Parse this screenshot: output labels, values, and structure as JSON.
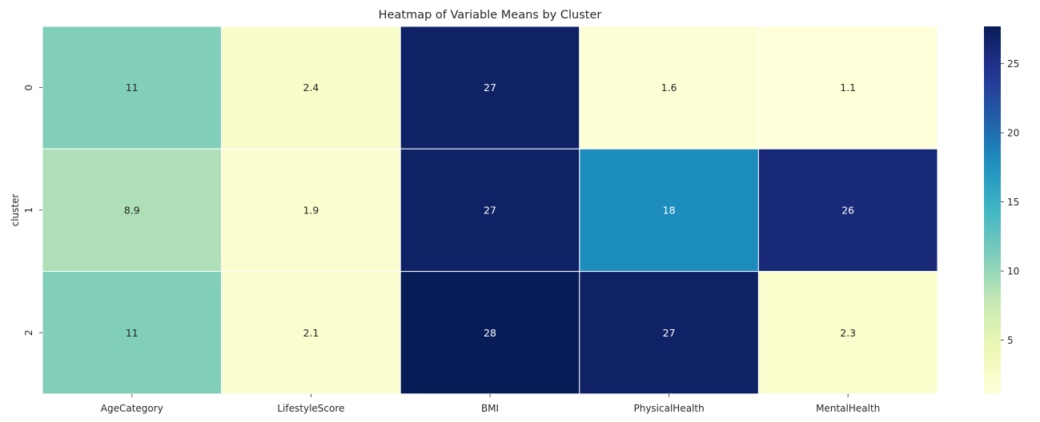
{
  "chart_data": {
    "type": "heatmap",
    "title": "Heatmap of Variable Means by Cluster",
    "xlabel": "",
    "ylabel": "cluster",
    "x_categories": [
      "AgeCategory",
      "LifestyleScore",
      "BMI",
      "PhysicalHealth",
      "MentalHealth"
    ],
    "y_categories": [
      "0",
      "1",
      "2"
    ],
    "values": [
      [
        11,
        2.4,
        27,
        1.6,
        1.1
      ],
      [
        8.9,
        1.9,
        27,
        18,
        26
      ],
      [
        11,
        2.1,
        28,
        27,
        2.3
      ]
    ],
    "annotations": [
      [
        "11",
        "2.4",
        "27",
        "1.6",
        "1.1"
      ],
      [
        "8.9",
        "1.9",
        "27",
        "18",
        "26"
      ],
      [
        "11",
        "2.1",
        "28",
        "27",
        "2.3"
      ]
    ],
    "colormap": "YlGnBu",
    "vmin": 1.1,
    "vmax": 27.7,
    "colorbar": {
      "ticks": [
        5,
        10,
        15,
        20,
        25
      ],
      "tick_labels": [
        "5",
        "10",
        "15",
        "20",
        "25"
      ]
    },
    "grid": false
  }
}
